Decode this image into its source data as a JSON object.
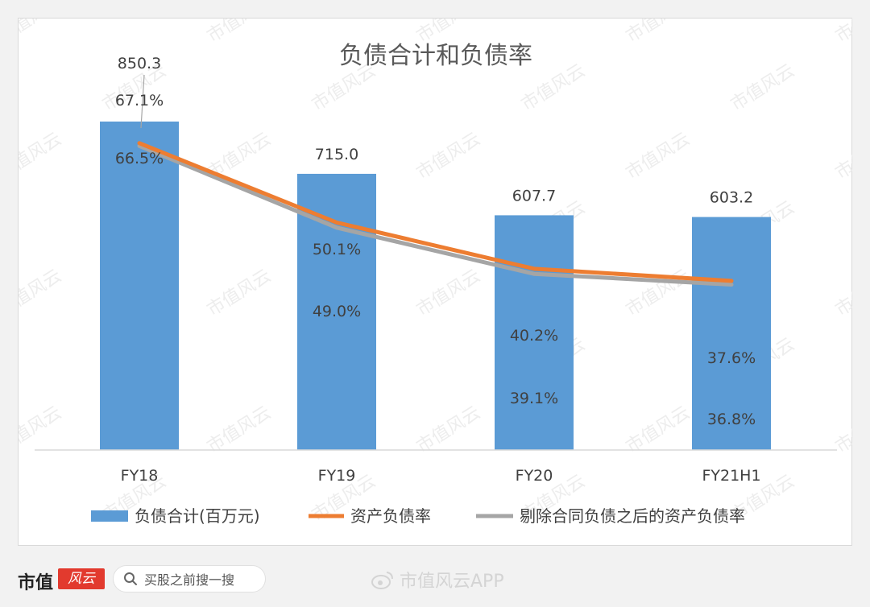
{
  "chart_data": {
    "type": "bar",
    "title": "负债合计和负债率",
    "categories": [
      "FY18",
      "FY19",
      "FY20",
      "FY21H1"
    ],
    "series": [
      {
        "name": "负债合计(百万元)",
        "kind": "bar",
        "values": [
          850.3,
          715.0,
          607.7,
          603.2
        ],
        "labels": [
          "850.3",
          "715.0",
          "607.7",
          "603.2"
        ],
        "color": "#5b9bd5"
      },
      {
        "name": "资产负债率",
        "kind": "line",
        "values": [
          67.1,
          50.1,
          40.2,
          37.6
        ],
        "labels": [
          "67.1%",
          "50.1%",
          "40.2%",
          "37.6%"
        ],
        "color": "#ed7d31"
      },
      {
        "name": "剔除合同负债之后的资产负债率",
        "kind": "line",
        "values": [
          66.5,
          49.0,
          39.1,
          36.8
        ],
        "labels": [
          "66.5%",
          "49.0%",
          "39.1%",
          "36.8%"
        ],
        "color": "#a5a5a5"
      }
    ],
    "legend_position": "bottom",
    "grid": false
  },
  "watermark": "市值风云",
  "footer": {
    "brand": "市值",
    "brand_mark": "风云",
    "search_text": "买股之前搜一搜",
    "weibo_text": "市值风云APP"
  },
  "colors": {
    "bar": "#5b9bd5",
    "line1": "#ed7d31",
    "line2": "#a5a5a5",
    "text": "#404040"
  }
}
